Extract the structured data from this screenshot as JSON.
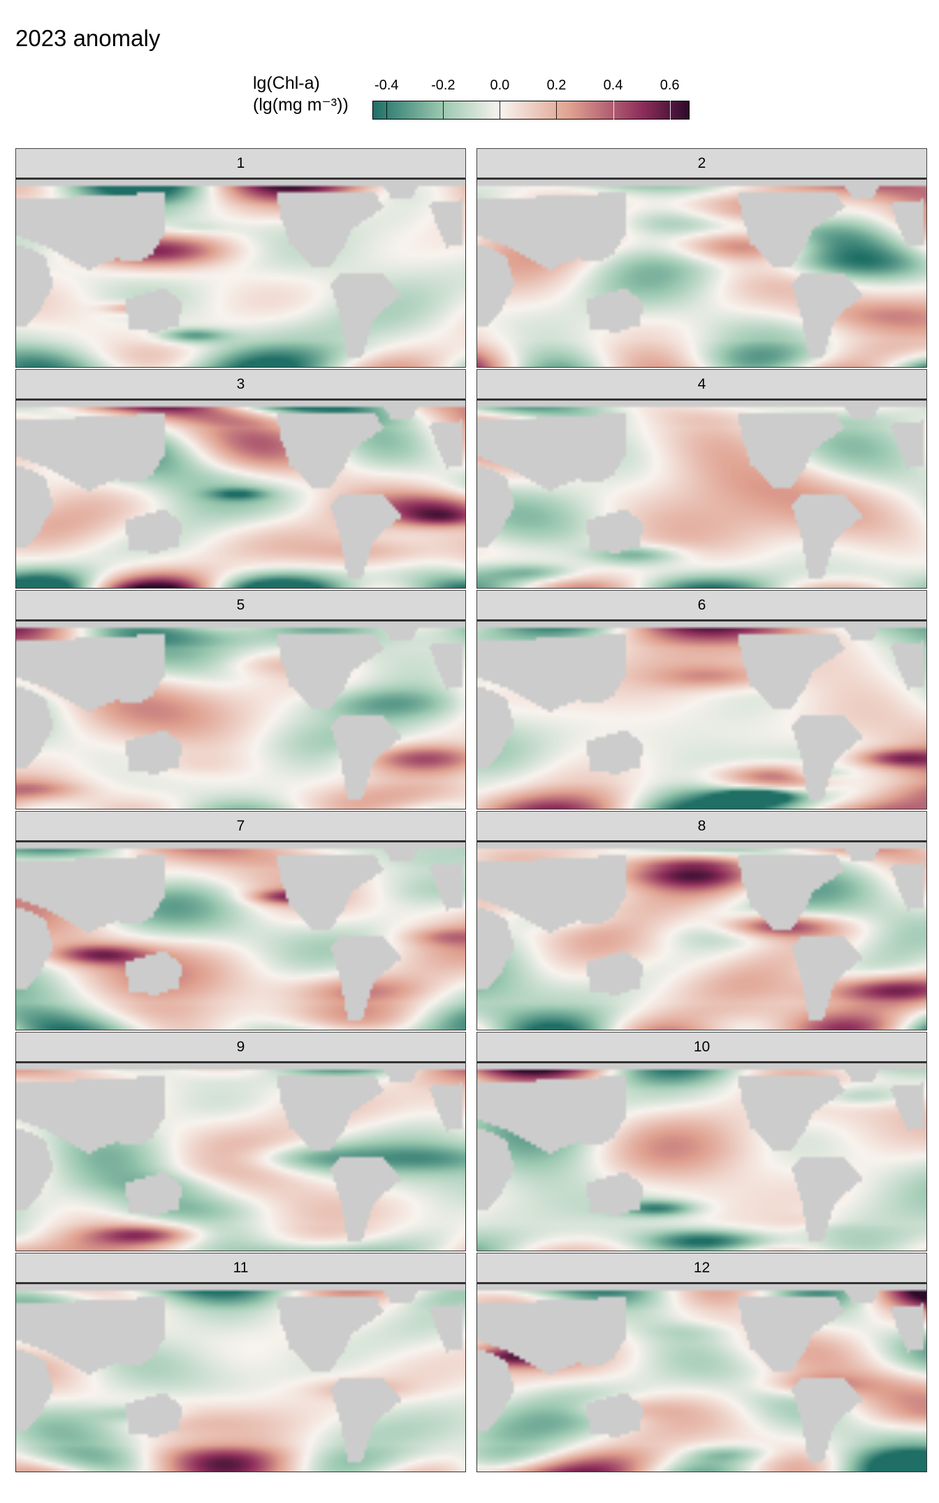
{
  "title": "2023 anomaly",
  "chart_data": {
    "type": "heatmap",
    "title": "2023 anomaly",
    "legend": {
      "title_line1": "lg(Chl-a)",
      "title_line2": "(lg(mg m⁻³))",
      "ticks": [
        "-0.4",
        "-0.2",
        "0.0",
        "0.2",
        "0.4",
        "0.6"
      ],
      "tick_values": [
        -0.4,
        -0.2,
        0.0,
        0.2,
        0.4,
        0.6
      ],
      "range": [
        -0.45,
        0.67
      ],
      "placement": "top",
      "colors": {
        "low": "#1f6f66",
        "mid_low": "#9cc9b1",
        "zero": "#f8f3ee",
        "mid_high": "#dfa08f",
        "high_mid": "#8f2f5c",
        "high": "#2d0a2a"
      }
    },
    "land_color": "#cccccc",
    "panels": [
      {
        "label": "1"
      },
      {
        "label": "2"
      },
      {
        "label": "3"
      },
      {
        "label": "4"
      },
      {
        "label": "5"
      },
      {
        "label": "6"
      },
      {
        "label": "7"
      },
      {
        "label": "8"
      },
      {
        "label": "9"
      },
      {
        "label": "10"
      },
      {
        "label": "11"
      },
      {
        "label": "12"
      }
    ]
  }
}
